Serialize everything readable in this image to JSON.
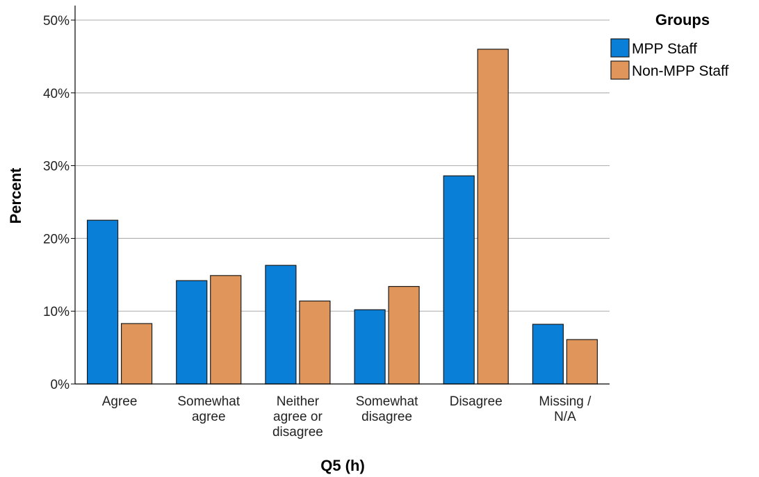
{
  "chart_data": {
    "type": "bar",
    "xlabel": "Q5 (h)",
    "ylabel": "Percent",
    "ylim": [
      0,
      52
    ],
    "y_ticks": [
      {
        "value": 0,
        "label": "0%"
      },
      {
        "value": 10,
        "label": "10%"
      },
      {
        "value": 20,
        "label": "20%"
      },
      {
        "value": 30,
        "label": "30%"
      },
      {
        "value": 40,
        "label": "40%"
      },
      {
        "value": 50,
        "label": "50%"
      }
    ],
    "categories": [
      [
        "Agree"
      ],
      [
        "Somewhat",
        "agree"
      ],
      [
        "Neither",
        "agree or",
        "disagree"
      ],
      [
        "Somewhat",
        "disagree"
      ],
      [
        "Disagree"
      ],
      [
        "Missing /",
        "N/A"
      ]
    ],
    "series": [
      {
        "name": "MPP Staff",
        "color": "#0a7fd8",
        "values": [
          22.5,
          14.2,
          16.3,
          10.2,
          28.6,
          8.2
        ]
      },
      {
        "name": "Non-MPP Staff",
        "color": "#e0965a",
        "values": [
          8.3,
          14.9,
          11.4,
          13.4,
          46.0,
          6.1
        ]
      }
    ],
    "legend": {
      "title": "Groups",
      "position": "top-right"
    },
    "grid": true
  }
}
